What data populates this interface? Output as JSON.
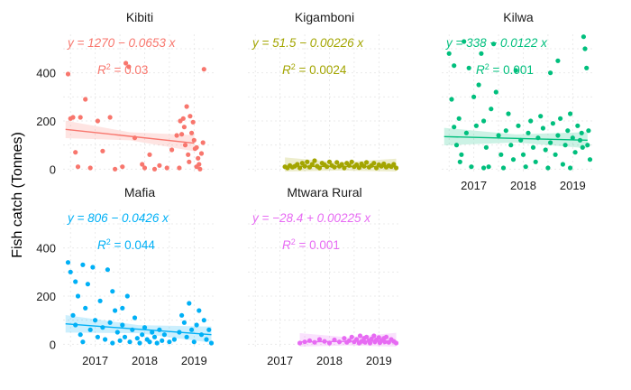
{
  "chart_data": {
    "type": "scatter",
    "facet_layout": "3 columns, facets fill row-wise",
    "grid": "minor dotted",
    "legend": "none",
    "y_axis_label": "Fish catch (Tonnes)",
    "y_ticks": [
      "0",
      "200",
      "400"
    ],
    "x_ticks": [
      "2017",
      "2018",
      "2019"
    ],
    "trend": "linear fit with confidence band",
    "facets": [
      {
        "name": "Kibiti",
        "color": "#F8766D",
        "equation": "y = 1270 − 0.0653 x",
        "r2_value": "= 0.03",
        "ylim": [
          -10,
          560
        ],
        "fit": [
          [
            2016.4,
            165
          ],
          [
            2019.0,
            108
          ]
        ],
        "points": [
          [
            2016.45,
            395
          ],
          [
            2016.5,
            210
          ],
          [
            2016.55,
            215
          ],
          [
            2016.6,
            70
          ],
          [
            2016.65,
            10
          ],
          [
            2016.7,
            215
          ],
          [
            2016.8,
            290
          ],
          [
            2016.9,
            5
          ],
          [
            2017.05,
            200
          ],
          [
            2017.15,
            75
          ],
          [
            2017.3,
            215
          ],
          [
            2017.4,
            0
          ],
          [
            2017.55,
            10
          ],
          [
            2017.62,
            440
          ],
          [
            2017.68,
            425
          ],
          [
            2017.8,
            130
          ],
          [
            2017.95,
            20
          ],
          [
            2018.0,
            5
          ],
          [
            2018.1,
            60
          ],
          [
            2018.2,
            0
          ],
          [
            2018.3,
            15
          ],
          [
            2018.45,
            5
          ],
          [
            2018.55,
            80
          ],
          [
            2018.65,
            140
          ],
          [
            2018.72,
            200
          ],
          [
            2018.75,
            145
          ],
          [
            2018.78,
            210
          ],
          [
            2018.8,
            175
          ],
          [
            2018.82,
            100
          ],
          [
            2018.85,
            260
          ],
          [
            2018.88,
            60
          ],
          [
            2018.9,
            30
          ],
          [
            2018.92,
            220
          ],
          [
            2018.95,
            150
          ],
          [
            2018.98,
            195
          ],
          [
            2019.0,
            120
          ],
          [
            2019.02,
            85
          ],
          [
            2019.05,
            90
          ],
          [
            2019.08,
            45
          ],
          [
            2019.1,
            20
          ],
          [
            2019.12,
            0
          ],
          [
            2019.15,
            65
          ],
          [
            2019.18,
            110
          ],
          [
            2019.2,
            415
          ],
          [
            2019.05,
            10
          ],
          [
            2018.7,
            5
          ]
        ]
      },
      {
        "name": "Kigamboni",
        "color": "#A3A500",
        "equation": "y = 51.5 − 0.00226 x",
        "r2_value": "= 0.0024",
        "ylim": [
          -10,
          560
        ],
        "fit": [
          [
            2017.1,
            12
          ],
          [
            2019.35,
            10
          ]
        ],
        "points": [
          [
            2017.1,
            10
          ],
          [
            2017.15,
            5
          ],
          [
            2017.2,
            15
          ],
          [
            2017.25,
            8
          ],
          [
            2017.3,
            12
          ],
          [
            2017.35,
            20
          ],
          [
            2017.4,
            5
          ],
          [
            2017.45,
            25
          ],
          [
            2017.5,
            12
          ],
          [
            2017.55,
            30
          ],
          [
            2017.6,
            8
          ],
          [
            2017.65,
            20
          ],
          [
            2017.7,
            35
          ],
          [
            2017.75,
            12
          ],
          [
            2017.8,
            5
          ],
          [
            2017.85,
            25
          ],
          [
            2017.9,
            18
          ],
          [
            2017.95,
            10
          ],
          [
            2018.0,
            30
          ],
          [
            2018.05,
            15
          ],
          [
            2018.1,
            8
          ],
          [
            2018.15,
            28
          ],
          [
            2018.2,
            12
          ],
          [
            2018.25,
            20
          ],
          [
            2018.3,
            5
          ],
          [
            2018.35,
            25
          ],
          [
            2018.4,
            15
          ],
          [
            2018.45,
            30
          ],
          [
            2018.5,
            10
          ],
          [
            2018.55,
            18
          ],
          [
            2018.6,
            6
          ],
          [
            2018.65,
            22
          ],
          [
            2018.7,
            12
          ],
          [
            2018.75,
            28
          ],
          [
            2018.8,
            8
          ],
          [
            2018.85,
            15
          ],
          [
            2018.9,
            25
          ],
          [
            2018.95,
            5
          ],
          [
            2019.0,
            18
          ],
          [
            2019.05,
            12
          ],
          [
            2019.1,
            22
          ],
          [
            2019.15,
            8
          ],
          [
            2019.2,
            15
          ],
          [
            2019.25,
            10
          ],
          [
            2019.3,
            20
          ],
          [
            2019.35,
            5
          ]
        ]
      },
      {
        "name": "Kilwa",
        "color": "#00BF7D",
        "equation": "y = 338 − 0.0122 x",
        "r2_value": "= 0.001",
        "ylim": [
          -10,
          560
        ],
        "fit": [
          [
            2016.4,
            135
          ],
          [
            2019.3,
            120
          ]
        ],
        "points": [
          [
            2016.5,
            480
          ],
          [
            2016.55,
            290
          ],
          [
            2016.6,
            175
          ],
          [
            2016.65,
            100
          ],
          [
            2016.7,
            210
          ],
          [
            2016.72,
            30
          ],
          [
            2016.75,
            60
          ],
          [
            2016.8,
            530
          ],
          [
            2016.85,
            150
          ],
          [
            2016.9,
            420
          ],
          [
            2016.95,
            10
          ],
          [
            2017.0,
            300
          ],
          [
            2017.05,
            180
          ],
          [
            2017.1,
            350
          ],
          [
            2017.15,
            480
          ],
          [
            2017.2,
            200
          ],
          [
            2017.25,
            90
          ],
          [
            2017.3,
            10
          ],
          [
            2017.35,
            250
          ],
          [
            2017.4,
            520
          ],
          [
            2017.45,
            320
          ],
          [
            2017.5,
            140
          ],
          [
            2017.55,
            60
          ],
          [
            2017.6,
            5
          ],
          [
            2017.65,
            160
          ],
          [
            2017.7,
            230
          ],
          [
            2017.75,
            100
          ],
          [
            2017.8,
            40
          ],
          [
            2017.85,
            410
          ],
          [
            2017.9,
            180
          ],
          [
            2017.95,
            120
          ],
          [
            2018.0,
            60
          ],
          [
            2018.05,
            10
          ],
          [
            2018.1,
            150
          ],
          [
            2018.15,
            200
          ],
          [
            2018.2,
            90
          ],
          [
            2018.25,
            30
          ],
          [
            2018.3,
            130
          ],
          [
            2018.35,
            220
          ],
          [
            2018.4,
            170
          ],
          [
            2018.45,
            80
          ],
          [
            2018.5,
            5
          ],
          [
            2018.55,
            110
          ],
          [
            2018.6,
            190
          ],
          [
            2018.65,
            60
          ],
          [
            2018.7,
            140
          ],
          [
            2018.75,
            210
          ],
          [
            2018.8,
            20
          ],
          [
            2018.85,
            100
          ],
          [
            2018.9,
            160
          ],
          [
            2018.95,
            230
          ],
          [
            2019.0,
            130
          ],
          [
            2019.05,
            70
          ],
          [
            2019.1,
            180
          ],
          [
            2019.15,
            120
          ],
          [
            2019.18,
            150
          ],
          [
            2019.2,
            90
          ],
          [
            2019.22,
            550
          ],
          [
            2019.25,
            500
          ],
          [
            2019.28,
            420
          ],
          [
            2019.3,
            100
          ],
          [
            2019.32,
            160
          ],
          [
            2019.35,
            40
          ],
          [
            2018.7,
            450
          ],
          [
            2018.55,
            400
          ],
          [
            2016.6,
            430
          ],
          [
            2017.2,
            5
          ],
          [
            2018.95,
            5
          ]
        ]
      },
      {
        "name": "Mafia",
        "color": "#00B0F6",
        "equation": "y = 806 − 0.0426 x",
        "r2_value": "= 0.044",
        "ylim": [
          -10,
          560
        ],
        "fit": [
          [
            2016.4,
            85
          ],
          [
            2019.35,
            40
          ]
        ],
        "points": [
          [
            2016.45,
            340
          ],
          [
            2016.5,
            300
          ],
          [
            2016.55,
            120
          ],
          [
            2016.6,
            80
          ],
          [
            2016.65,
            200
          ],
          [
            2016.7,
            40
          ],
          [
            2016.75,
            10
          ],
          [
            2016.8,
            150
          ],
          [
            2016.85,
            250
          ],
          [
            2016.9,
            60
          ],
          [
            2016.95,
            320
          ],
          [
            2017.0,
            100
          ],
          [
            2017.05,
            30
          ],
          [
            2017.1,
            180
          ],
          [
            2017.15,
            70
          ],
          [
            2017.2,
            20
          ],
          [
            2017.25,
            310
          ],
          [
            2017.3,
            90
          ],
          [
            2017.35,
            5
          ],
          [
            2017.4,
            140
          ],
          [
            2017.45,
            50
          ],
          [
            2017.5,
            15
          ],
          [
            2017.55,
            80
          ],
          [
            2017.6,
            30
          ],
          [
            2017.65,
            200
          ],
          [
            2017.7,
            10
          ],
          [
            2017.75,
            60
          ],
          [
            2017.8,
            110
          ],
          [
            2017.85,
            25
          ],
          [
            2017.9,
            5
          ],
          [
            2017.95,
            40
          ],
          [
            2018.0,
            70
          ],
          [
            2018.05,
            20
          ],
          [
            2018.1,
            10
          ],
          [
            2018.15,
            50
          ],
          [
            2018.2,
            30
          ],
          [
            2018.25,
            5
          ],
          [
            2018.3,
            60
          ],
          [
            2018.35,
            15
          ],
          [
            2018.4,
            40
          ],
          [
            2018.5,
            10
          ],
          [
            2018.6,
            20
          ],
          [
            2018.7,
            50
          ],
          [
            2018.75,
            120
          ],
          [
            2018.8,
            90
          ],
          [
            2018.85,
            30
          ],
          [
            2018.9,
            170
          ],
          [
            2018.95,
            60
          ],
          [
            2019.0,
            10
          ],
          [
            2019.05,
            80
          ],
          [
            2019.1,
            140
          ],
          [
            2019.15,
            40
          ],
          [
            2019.2,
            100
          ],
          [
            2019.25,
            20
          ],
          [
            2019.3,
            60
          ],
          [
            2019.35,
            5
          ],
          [
            2016.6,
            260
          ],
          [
            2016.75,
            330
          ],
          [
            2017.35,
            220
          ],
          [
            2017.55,
            150
          ]
        ]
      },
      {
        "name": "Mtwara Rural",
        "color": "#E76BF3",
        "equation": "y = −28.4 + 0.00225 x",
        "r2_value": "= 0.001",
        "ylim": [
          -10,
          560
        ],
        "fit": [
          [
            2017.4,
            10
          ],
          [
            2019.35,
            14
          ]
        ],
        "points": [
          [
            2017.4,
            5
          ],
          [
            2017.5,
            10
          ],
          [
            2017.6,
            15
          ],
          [
            2017.7,
            8
          ],
          [
            2017.8,
            20
          ],
          [
            2017.9,
            12
          ],
          [
            2018.0,
            5
          ],
          [
            2018.1,
            18
          ],
          [
            2018.2,
            10
          ],
          [
            2018.3,
            25
          ],
          [
            2018.35,
            8
          ],
          [
            2018.4,
            15
          ],
          [
            2018.45,
            30
          ],
          [
            2018.5,
            10
          ],
          [
            2018.55,
            20
          ],
          [
            2018.6,
            5
          ],
          [
            2018.62,
            35
          ],
          [
            2018.65,
            12
          ],
          [
            2018.7,
            25
          ],
          [
            2018.72,
            8
          ],
          [
            2018.75,
            30
          ],
          [
            2018.8,
            15
          ],
          [
            2018.82,
            5
          ],
          [
            2018.85,
            22
          ],
          [
            2018.9,
            35
          ],
          [
            2018.92,
            10
          ],
          [
            2018.95,
            18
          ],
          [
            2019.0,
            28
          ],
          [
            2019.02,
            6
          ],
          [
            2019.05,
            15
          ],
          [
            2019.1,
            25
          ],
          [
            2019.12,
            10
          ],
          [
            2019.15,
            30
          ],
          [
            2019.2,
            8
          ],
          [
            2019.25,
            20
          ],
          [
            2019.3,
            12
          ],
          [
            2019.35,
            5
          ]
        ]
      }
    ]
  }
}
